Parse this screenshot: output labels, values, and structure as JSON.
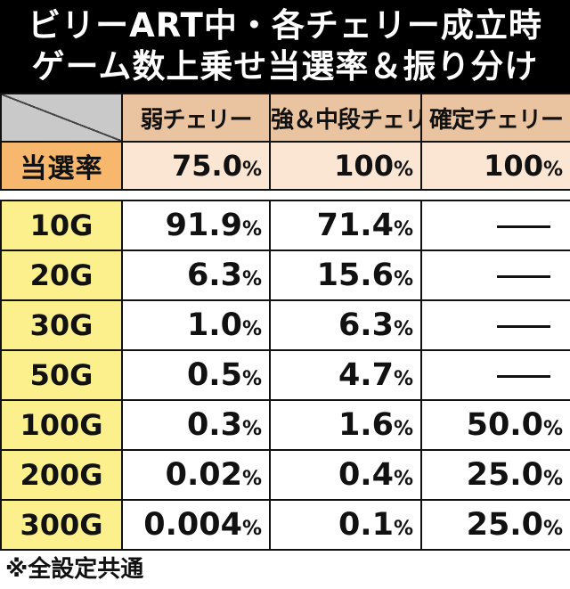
{
  "title": {
    "line1": "ビリーART中・各チェリー成立時",
    "line2": "ゲーム数上乗せ当選率＆振り分け"
  },
  "columns": [
    "弱チェリー",
    "強＆中段チェリー",
    "確定チェリー"
  ],
  "rate_row": {
    "label": "当選率",
    "values": [
      "75.0",
      "100",
      "100"
    ]
  },
  "percent_sign": "%",
  "rows": [
    {
      "label": "10G",
      "values": [
        "91.9",
        "71.4",
        "—"
      ]
    },
    {
      "label": "20G",
      "values": [
        "6.3",
        "15.6",
        "—"
      ]
    },
    {
      "label": "30G",
      "values": [
        "1.0",
        "6.3",
        "—"
      ]
    },
    {
      "label": "50G",
      "values": [
        "0.5",
        "4.7",
        "—"
      ]
    },
    {
      "label": "100G",
      "values": [
        "0.3",
        "1.6",
        "50.0"
      ]
    },
    {
      "label": "200G",
      "values": [
        "0.02",
        "0.4",
        "25.0"
      ]
    },
    {
      "label": "300G",
      "values": [
        "0.004",
        "0.1",
        "25.0"
      ]
    }
  ],
  "footer": "※全設定共通",
  "colors": {
    "title_bg": "#000000",
    "corner_bg": "#c9c9c9",
    "column_header_bg": "#eac3a0",
    "rate_label_bg": "#f7b86d",
    "rate_value_bg": "#fbe5d3",
    "game_label_bg": "#fbf08c"
  }
}
